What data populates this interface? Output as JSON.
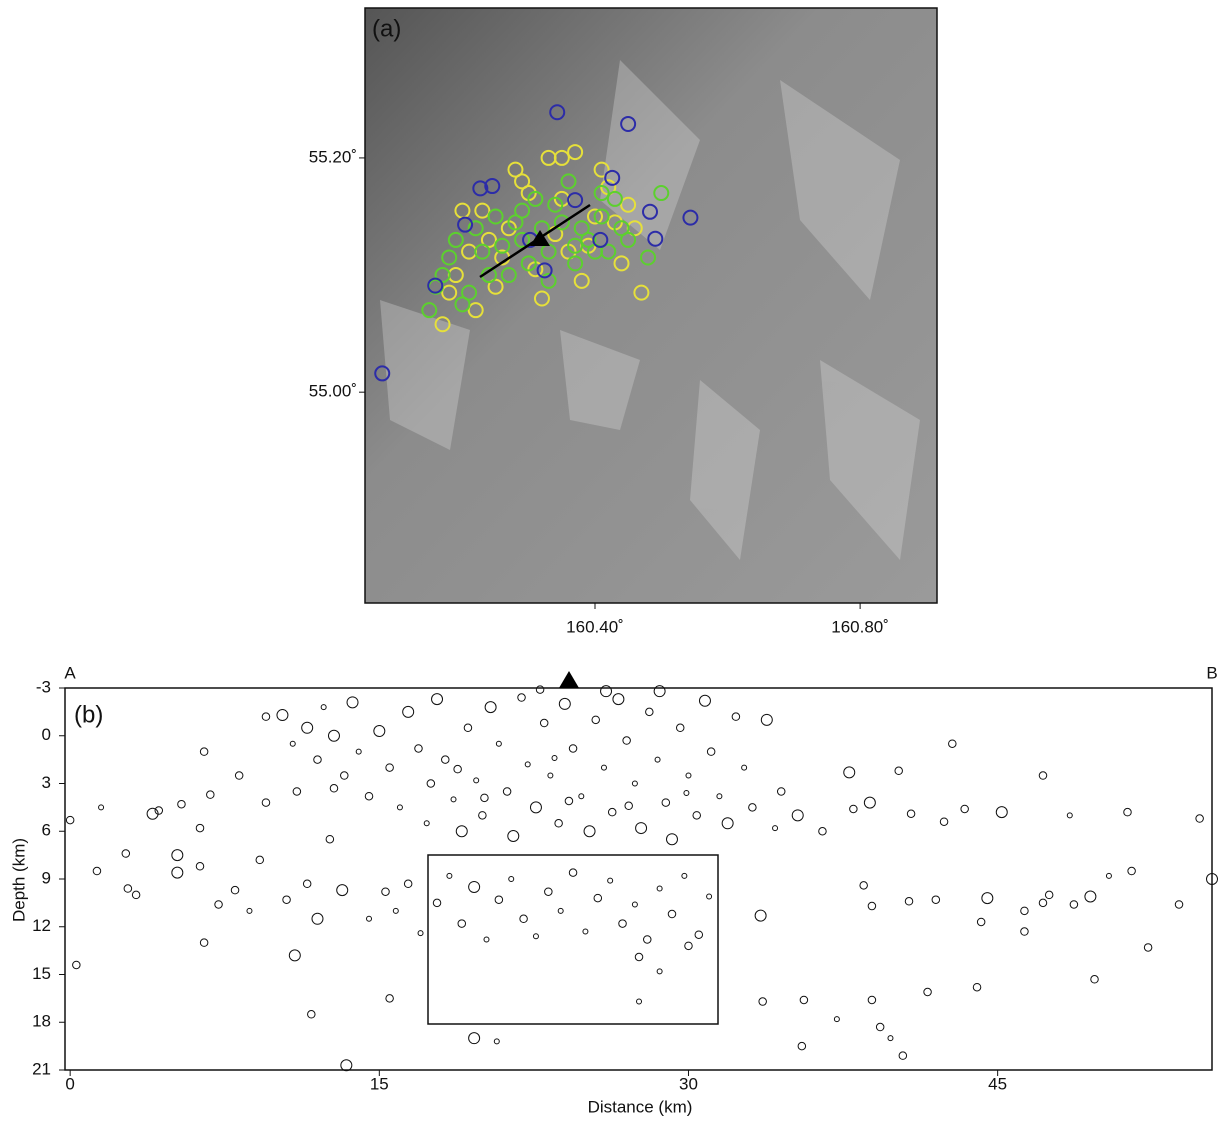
{
  "chart_data": [
    {
      "type": "scatter",
      "panel_label": "(a)",
      "xlim": [
        160.053,
        160.916
      ],
      "ylim": [
        54.82,
        55.328
      ],
      "xticks": [
        {
          "value": 160.4,
          "label": "160.40˚"
        },
        {
          "value": 160.8,
          "label": "160.80˚"
        }
      ],
      "yticks": [
        {
          "value": 55.2,
          "label": "55.20˚"
        },
        {
          "value": 55.0,
          "label": "55.00˚"
        }
      ],
      "series": [
        {
          "color": "#e6e03a",
          "x": [
            160.17,
            160.19,
            160.21,
            160.23,
            160.25,
            160.27,
            160.29,
            160.31,
            160.33,
            160.35,
            160.37,
            160.39,
            160.41,
            160.43,
            160.45,
            160.47,
            160.22,
            160.26,
            160.3,
            160.34,
            160.38,
            160.42,
            160.2,
            160.28,
            160.32,
            160.36,
            160.4,
            160.44,
            160.24,
            160.46,
            160.18,
            160.35
          ],
          "values": [
            55.058,
            55.1,
            55.12,
            55.155,
            55.09,
            55.14,
            55.18,
            55.105,
            55.2,
            55.165,
            55.205,
            55.125,
            55.19,
            55.145,
            55.16,
            55.085,
            55.07,
            55.115,
            55.17,
            55.135,
            55.095,
            55.175,
            55.155,
            55.19,
            55.08,
            55.12,
            55.15,
            55.11,
            55.13,
            55.14,
            55.085,
            55.2
          ]
        },
        {
          "color": "#5cd02e",
          "x": [
            160.15,
            160.17,
            160.19,
            160.21,
            160.23,
            160.25,
            160.27,
            160.29,
            160.31,
            160.33,
            160.35,
            160.37,
            160.39,
            160.41,
            160.43,
            160.45,
            160.16,
            160.2,
            160.24,
            160.28,
            160.32,
            160.36,
            160.4,
            160.44,
            160.48,
            160.3,
            160.34,
            160.38,
            160.42,
            160.26,
            160.22,
            160.18,
            160.37,
            160.33,
            160.29,
            160.41,
            160.5
          ],
          "values": [
            55.07,
            55.1,
            55.13,
            55.085,
            55.12,
            55.15,
            55.1,
            55.13,
            55.165,
            55.12,
            55.145,
            55.11,
            55.13,
            55.15,
            55.165,
            55.13,
            55.09,
            55.075,
            55.1,
            55.145,
            55.14,
            55.18,
            55.12,
            55.14,
            55.115,
            55.11,
            55.16,
            55.14,
            55.12,
            55.125,
            55.14,
            55.115,
            55.125,
            55.095,
            55.155,
            55.17,
            55.17
          ]
        },
        {
          "color": "#2c2ca8",
          "x": [
            160.079,
            160.343,
            160.45,
            160.544,
            160.227,
            160.245,
            160.204,
            160.491,
            160.483,
            160.426,
            160.324,
            160.159,
            160.302,
            160.37,
            160.408
          ],
          "values": [
            55.016,
            55.239,
            55.229,
            55.149,
            55.174,
            55.176,
            55.143,
            55.131,
            55.154,
            55.183,
            55.104,
            55.091,
            55.13,
            55.164,
            55.13
          ]
        }
      ]
    },
    {
      "type": "bubble",
      "panel_label": "(b)",
      "start_label": "A",
      "end_label": "B",
      "x_label": "Distance (km)",
      "y_label": "Depth (km)",
      "xlim": [
        -0.25,
        55.4
      ],
      "ylim": [
        -3,
        21
      ],
      "y_inverted": true,
      "xticks": [
        0,
        15,
        30,
        45
      ],
      "yticks": [
        -3,
        0,
        3,
        6,
        9,
        12,
        15,
        18,
        21
      ],
      "series": [
        {
          "color": "#111111",
          "x": [
            0,
            0.3,
            1.3,
            1.5,
            2.7,
            2.8,
            3.2,
            4,
            4.3,
            5.2,
            5.2,
            5.4,
            6.3,
            6.3,
            6.5,
            6.5,
            6.8,
            7.2,
            8,
            8.2,
            8.7,
            9.2,
            9.5,
            10.9,
            11.7,
            13.4,
            15.5,
            19.6,
            20.7,
            10.5,
            11.5,
            12,
            12.6,
            13.2,
            12.8,
            14.5,
            9.5,
            10.3,
            10.8,
            11,
            11.5,
            12,
            12.3,
            12.8,
            13.3,
            13.7,
            14,
            14.5,
            15,
            15.5,
            16,
            16.4,
            16.9,
            17.3,
            17.5,
            17.8,
            18.2,
            18.6,
            19,
            19.3,
            19.7,
            20,
            20.4,
            20.8,
            21.2,
            21.5,
            21.9,
            22.2,
            22.6,
            23,
            23.3,
            23.7,
            24,
            24.4,
            24.8,
            25.2,
            25.5,
            25.9,
            26.3,
            26.6,
            27,
            27.4,
            27.7,
            28.1,
            28.5,
            28.9,
            29.2,
            29.6,
            30,
            30.4,
            30.8,
            31.1,
            31.5,
            31.9,
            32.3,
            32.7,
            33.1,
            33.8,
            34.2,
            34.5,
            26,
            22.8,
            28.6,
            20.1,
            24.2,
            27.1,
            29.9,
            18.8,
            23.5,
            15.3,
            15.8,
            16.4,
            17,
            17.8,
            18.4,
            19,
            19.6,
            20.2,
            20.8,
            21.4,
            22,
            22.6,
            23.2,
            23.8,
            24.4,
            25,
            25.6,
            26.2,
            26.8,
            27.4,
            28,
            28.6,
            29.2,
            29.8,
            30.5,
            31,
            27.6,
            28.6,
            27.6,
            30,
            33.5,
            33.6,
            35.3,
            35.6,
            35.5,
            36.5,
            37.2,
            37.8,
            38,
            38.5,
            38.8,
            38.9,
            38.9,
            39.3,
            39.8,
            40.4,
            40.2,
            40.7,
            40.8,
            41.6,
            42,
            42.4,
            42.8,
            43.4,
            44,
            44.2,
            44.5,
            45.2,
            46.3,
            46.3,
            47.2,
            47.2,
            47.5,
            48.7,
            48.5,
            49.5,
            49.7,
            50.4,
            51.5,
            51.3,
            52.3,
            53.8,
            54.8,
            55.4
          ],
          "values": [
            5.3,
            14.4,
            8.5,
            4.5,
            7.4,
            9.6,
            10,
            4.9,
            4.7,
            7.5,
            8.6,
            4.3,
            5.8,
            8.2,
            13,
            1,
            3.7,
            10.6,
            9.7,
            2.5,
            11,
            7.8,
            4.2,
            13.8,
            17.5,
            20.7,
            16.5,
            19,
            19.2,
            10.3,
            9.3,
            11.5,
            6.5,
            9.7,
            3.3,
            11.5,
            -1.2,
            -1.3,
            0.5,
            3.5,
            -0.5,
            1.5,
            -1.8,
            0,
            2.5,
            -2.1,
            1,
            3.8,
            -0.3,
            2,
            4.5,
            -1.5,
            0.8,
            5.5,
            3,
            -2.3,
            1.5,
            4,
            6,
            -0.5,
            2.8,
            5,
            -1.8,
            0.5,
            3.5,
            6.3,
            -2.4,
            1.8,
            4.5,
            -0.8,
            2.5,
            5.5,
            -2,
            0.8,
            3.8,
            6,
            -1,
            2,
            4.8,
            -2.3,
            0.3,
            3,
            5.8,
            -1.5,
            1.5,
            4.2,
            6.5,
            -0.5,
            2.5,
            5,
            -2.2,
            1,
            3.8,
            5.5,
            -1.2,
            2,
            4.5,
            -1,
            5.8,
            3.5,
            -2.8,
            -2.9,
            -2.8,
            3.9,
            4.1,
            4.4,
            3.6,
            2.1,
            1.4,
            9.8,
            11,
            9.3,
            12.4,
            10.5,
            8.8,
            11.8,
            9.5,
            12.8,
            10.3,
            9,
            11.5,
            12.6,
            9.8,
            11,
            8.6,
            12.3,
            10.2,
            9.1,
            11.8,
            10.6,
            12.8,
            9.6,
            11.2,
            8.8,
            12.5,
            10.1,
            13.9,
            14.8,
            16.7,
            13.2,
            11.3,
            16.7,
            5,
            16.6,
            19.5,
            6,
            17.8,
            2.3,
            4.6,
            9.4,
            4.2,
            10.7,
            16.6,
            18.3,
            19,
            20.1,
            2.2,
            10.4,
            4.9,
            16.1,
            10.3,
            5.4,
            0.5,
            4.6,
            15.8,
            11.7,
            10.2,
            4.8,
            11,
            12.3,
            2.5,
            10.5,
            10,
            10.6,
            5,
            10.1,
            15.3,
            8.8,
            8.5,
            4.8,
            13.3,
            10.6,
            5.2,
            9
          ],
          "sizes": [
            1.5,
            1.5,
            1.5,
            1,
            1.5,
            1.5,
            1.5,
            2.2,
            1.5,
            2.2,
            2.2,
            1.5,
            1.5,
            1.5,
            1.5,
            1.5,
            1.5,
            1.5,
            1.5,
            1.5,
            1,
            1.5,
            1.5,
            2.2,
            1.5,
            2.2,
            1.5,
            2.2,
            1,
            1.5,
            1.5,
            2.2,
            1.5,
            2.2,
            1.5,
            1,
            1.5,
            2.2,
            1,
            1.5,
            2.2,
            1.5,
            1,
            2.2,
            1.5,
            2.2,
            1,
            1.5,
            2.2,
            1.5,
            1,
            2.2,
            1.5,
            1,
            1.5,
            2.2,
            1.5,
            1,
            2.2,
            1.5,
            1,
            1.5,
            2.2,
            1,
            1.5,
            2.2,
            1.5,
            1,
            2.2,
            1.5,
            1,
            1.5,
            2.2,
            1.5,
            1,
            2.2,
            1.5,
            1,
            1.5,
            2.2,
            1.5,
            1,
            2.2,
            1.5,
            1,
            1.5,
            2.2,
            1.5,
            1,
            1.5,
            2.2,
            1.5,
            1,
            2.2,
            1.5,
            1,
            1.5,
            2.2,
            1,
            1.5,
            2.2,
            1.5,
            2.2,
            1.5,
            1.5,
            1.5,
            1,
            1.5,
            1,
            1.5,
            1,
            1.5,
            1,
            1.5,
            1,
            1.5,
            2.2,
            1,
            1.5,
            1,
            1.5,
            1,
            1.5,
            1,
            1.5,
            1,
            1.5,
            1,
            1.5,
            1,
            1.5,
            1,
            1.5,
            1,
            1.5,
            1,
            1.5,
            1,
            1,
            1.5,
            2.2,
            1.5,
            2.2,
            1.5,
            1.5,
            1.5,
            1,
            2.2,
            1.5,
            1.5,
            2.2,
            1.5,
            1.5,
            1.5,
            1,
            1.5,
            1.5,
            1.5,
            1.5,
            1.5,
            1.5,
            1.5,
            1.5,
            1.5,
            1.5,
            1.5,
            2.2,
            2.2,
            1.5,
            1.5,
            1.5,
            1.5,
            1.5,
            1.5,
            1,
            2.2,
            1.5,
            1,
            1.5,
            1.5,
            1.5,
            1.5,
            1.5,
            2.2
          ]
        }
      ]
    }
  ]
}
